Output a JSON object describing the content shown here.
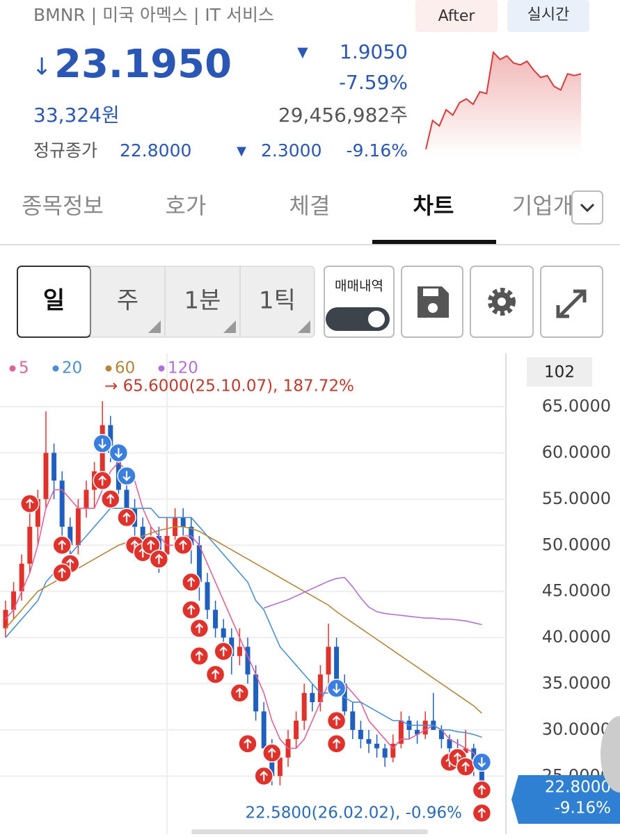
{
  "header": {
    "symbol": "BMNR | 미국 아멕스 | IT 서비스",
    "after": "After",
    "realtime": "실시간"
  },
  "price": {
    "arrow": "↓",
    "value": "23.1950",
    "change_arrow": "▼",
    "change": "1.9050",
    "change_pct": "-7.59%",
    "krw": "33,324원",
    "volume": "29,456,982주"
  },
  "regular": {
    "label": "정규종가",
    "price": "22.8000",
    "arrow": "▼",
    "change": "2.3000",
    "pct": "-9.16%"
  },
  "mini_chart": {
    "color": "#d83a3a",
    "ylim": [
      19.8,
      25.8
    ],
    "values": [
      20.2,
      21.8,
      21.5,
      22.4,
      22.1,
      22.8,
      23,
      22.7,
      23.4,
      23.3,
      25.6,
      25.2,
      25.4,
      25,
      24.9,
      25.1,
      24.6,
      24.2,
      24.3,
      23.7,
      23.5,
      24.4,
      24.3,
      24.4
    ]
  },
  "tabs": [
    "종목정보",
    "호가",
    "체결",
    "차트",
    "기업개"
  ],
  "toolbar": {
    "periods": [
      "일",
      "주",
      "1분",
      "1틱"
    ],
    "trade_toggle": "매매내역"
  },
  "chart_data": {
    "type": "candlestick",
    "up_color": "#e0312b",
    "down_color": "#1f5fbf",
    "ylim": [
      18.7,
      70.8
    ],
    "yticks": [
      {
        "value": 65,
        "label": "65.0000"
      },
      {
        "value": 60,
        "label": "60.0000"
      },
      {
        "value": 55,
        "label": "55.0000"
      },
      {
        "value": 50,
        "label": "50.0000"
      },
      {
        "value": 45,
        "label": "45.0000"
      },
      {
        "value": 40,
        "label": "40.0000"
      },
      {
        "value": 35,
        "label": "35.0000"
      },
      {
        "value": 30,
        "label": "30.0000"
      },
      {
        "value": 25,
        "label": "25.0000"
      }
    ],
    "grid": true,
    "count": "102",
    "high_annotation": "→ 65.6000(25.10.07), 187.72%",
    "low_annotation": "22.5800(26.02.02), -0.96%",
    "last_price": "22.8000",
    "last_pct": "-9.16%",
    "candles": [
      [
        41,
        44,
        40,
        43
      ],
      [
        43,
        46,
        42,
        45
      ],
      [
        45,
        49,
        44,
        48
      ],
      [
        48,
        54,
        47,
        52
      ],
      [
        52,
        56,
        50,
        55
      ],
      [
        55,
        64.5,
        54,
        60
      ],
      [
        60,
        61,
        55,
        57
      ],
      [
        57,
        58,
        50,
        52
      ],
      [
        52,
        53,
        48,
        50
      ],
      [
        50,
        55,
        49,
        54
      ],
      [
        54,
        57,
        53,
        56
      ],
      [
        56,
        59,
        54,
        58
      ],
      [
        58,
        65.6,
        57,
        63
      ],
      [
        63,
        64,
        59,
        60
      ],
      [
        60,
        61,
        55,
        56
      ],
      [
        56,
        57,
        53,
        54
      ],
      [
        54,
        55,
        51,
        52
      ],
      [
        52,
        53,
        49,
        50
      ],
      [
        50,
        52,
        48,
        51
      ],
      [
        51,
        52,
        47,
        49
      ],
      [
        49,
        53,
        48,
        51
      ],
      [
        51,
        54,
        50,
        53
      ],
      [
        53,
        54,
        51,
        52
      ],
      [
        52,
        53,
        48,
        50
      ],
      [
        50,
        51,
        44,
        46
      ],
      [
        46,
        47,
        42,
        43
      ],
      [
        43,
        44,
        40,
        41
      ],
      [
        41,
        42,
        38,
        40
      ],
      [
        40,
        41,
        36,
        38
      ],
      [
        38,
        41,
        37,
        39
      ],
      [
        39,
        40,
        35,
        36
      ],
      [
        36,
        37,
        31,
        32
      ],
      [
        32,
        33,
        27,
        28
      ],
      [
        28,
        29,
        24,
        25
      ],
      [
        25,
        28,
        24,
        27
      ],
      [
        27,
        30,
        26,
        29
      ],
      [
        29,
        32,
        28,
        31
      ],
      [
        31,
        35,
        30,
        34
      ],
      [
        34,
        35,
        32,
        33
      ],
      [
        33,
        37,
        32,
        36
      ],
      [
        36,
        41.5,
        35,
        39
      ],
      [
        39,
        40,
        34,
        35
      ],
      [
        35,
        36,
        31,
        32
      ],
      [
        32,
        33,
        29,
        30
      ],
      [
        30,
        31,
        28,
        29
      ],
      [
        29,
        30,
        27.5,
        28.5
      ],
      [
        28.5,
        29.5,
        27,
        28
      ],
      [
        28,
        28.5,
        26,
        27
      ],
      [
        27,
        29.5,
        26.5,
        28.5
      ],
      [
        28.5,
        32,
        28,
        31
      ],
      [
        31,
        31.5,
        29,
        30
      ],
      [
        30,
        31,
        28.5,
        29.5
      ],
      [
        29.5,
        32,
        29,
        31
      ],
      [
        31,
        34,
        30,
        30
      ],
      [
        30,
        30.5,
        28,
        29
      ],
      [
        29,
        29.5,
        27,
        28
      ],
      [
        28,
        29,
        27,
        27.5
      ],
      [
        27.5,
        30,
        27,
        28
      ],
      [
        28,
        28.5,
        25,
        26
      ],
      [
        26,
        26.5,
        22.58,
        22.8
      ]
    ],
    "series": [
      {
        "name": "5",
        "color": "#e0609a",
        "values": [
          42,
          43,
          45,
          47,
          50,
          54,
          56,
          56,
          55,
          54,
          54,
          54,
          56,
          58,
          59,
          58,
          57,
          54,
          52,
          51,
          50,
          50,
          51,
          51,
          50,
          48,
          46,
          44,
          42,
          40,
          38,
          36,
          34,
          31,
          29,
          28,
          28,
          29,
          31,
          33,
          35,
          35,
          35,
          34,
          33,
          31,
          30,
          29,
          28,
          29,
          29,
          29.5,
          30,
          30.5,
          30,
          29,
          28.5,
          28,
          27.5,
          26
        ]
      },
      {
        "name": "20",
        "color": "#4a8fd6",
        "values": [
          40,
          41,
          42,
          43,
          44,
          46,
          47,
          48,
          49,
          50,
          51,
          52,
          53,
          54,
          54,
          54,
          54,
          54,
          54,
          53,
          53,
          53,
          53,
          53,
          52,
          51,
          50,
          49,
          48,
          47,
          46,
          44,
          43,
          41,
          39,
          38,
          37,
          36,
          35,
          34,
          34,
          34,
          33.5,
          33,
          33,
          32.5,
          32,
          31.5,
          31,
          31,
          30.5,
          30.5,
          30.5,
          30.5,
          30,
          30,
          29.8,
          29.7,
          29.5,
          29.2
        ]
      },
      {
        "name": "60",
        "color": "#b5863a",
        "values": [
          41,
          42,
          43,
          44,
          45,
          45.5,
          46,
          46.5,
          47,
          47.5,
          48,
          48.5,
          49,
          49.5,
          50,
          50.3,
          50.6,
          51,
          51.3,
          51.6,
          51.8,
          52,
          52,
          51.8,
          51.5,
          51,
          50.5,
          50,
          49.5,
          49,
          48.5,
          48,
          47.5,
          47,
          46.5,
          46,
          45.5,
          45,
          44.5,
          44,
          43.5,
          42.8,
          42.2,
          41.6,
          41,
          40.4,
          39.8,
          39.2,
          38.6,
          38,
          37.4,
          36.8,
          36.2,
          35.6,
          35,
          34.4,
          33.8,
          33.2,
          32.6,
          31.8
        ]
      },
      {
        "name": "120",
        "color": "#b26fd6",
        "values": [
          null,
          null,
          null,
          null,
          null,
          null,
          null,
          null,
          null,
          null,
          null,
          null,
          null,
          null,
          null,
          null,
          null,
          null,
          null,
          null,
          null,
          null,
          null,
          null,
          null,
          null,
          null,
          null,
          null,
          null,
          null,
          null,
          43.2,
          43.5,
          43.8,
          44.1,
          44.5,
          44.9,
          45.3,
          45.7,
          46.1,
          46.4,
          46.5,
          45.5,
          44.3,
          43.3,
          42.8,
          42.6,
          42.5,
          42.4,
          42.3,
          42.2,
          42.1,
          42.1,
          42,
          42,
          41.9,
          41.8,
          41.6,
          41.4
        ]
      }
    ],
    "markers": [
      {
        "index": 3,
        "price": 54.5,
        "color": "#e0312b"
      },
      {
        "index": 7,
        "price": 50,
        "color": "#e0312b"
      },
      {
        "index": 8,
        "price": 48,
        "color": "#e0312b"
      },
      {
        "index": 7,
        "price": 47,
        "color": "#e0312b"
      },
      {
        "index": 12,
        "price": 57,
        "color": "#e0312b"
      },
      {
        "index": 13,
        "price": 55,
        "color": "#e0312b"
      },
      {
        "index": 15,
        "price": 53,
        "color": "#e0312b"
      },
      {
        "index": 16,
        "price": 50,
        "color": "#e0312b"
      },
      {
        "index": 17,
        "price": 49.2,
        "color": "#e0312b"
      },
      {
        "index": 18,
        "price": 50,
        "color": "#e0312b"
      },
      {
        "index": 19,
        "price": 48.5,
        "color": "#e0312b"
      },
      {
        "index": 22,
        "price": 50,
        "color": "#e0312b"
      },
      {
        "index": 23,
        "price": 46,
        "color": "#e0312b"
      },
      {
        "index": 23,
        "price": 43,
        "color": "#e0312b"
      },
      {
        "index": 24,
        "price": 41,
        "color": "#e0312b"
      },
      {
        "index": 24,
        "price": 38,
        "color": "#e0312b"
      },
      {
        "index": 26,
        "price": 36,
        "color": "#e0312b"
      },
      {
        "index": 27,
        "price": 38.5,
        "color": "#e0312b"
      },
      {
        "index": 29,
        "price": 34,
        "color": "#e0312b"
      },
      {
        "index": 30,
        "price": 28.5,
        "color": "#e0312b"
      },
      {
        "index": 32,
        "price": 25,
        "color": "#e0312b"
      },
      {
        "index": 33,
        "price": 27.5,
        "color": "#e0312b"
      },
      {
        "index": 41,
        "price": 31,
        "color": "#e0312b"
      },
      {
        "index": 41,
        "price": 28.5,
        "color": "#e0312b"
      },
      {
        "index": 55,
        "price": 26.5,
        "color": "#e0312b"
      },
      {
        "index": 56,
        "price": 27,
        "color": "#e0312b"
      },
      {
        "index": 57,
        "price": 26,
        "color": "#e0312b"
      },
      {
        "index": 59,
        "price": 23.5,
        "color": "#e0312b"
      },
      {
        "index": 59,
        "price": 21,
        "color": "#e0312b"
      },
      {
        "index": 12,
        "price": 61,
        "color": "#3a7ee0"
      },
      {
        "index": 14,
        "price": 60,
        "color": "#3a7ee0"
      },
      {
        "index": 15,
        "price": 57.5,
        "color": "#3a7ee0"
      },
      {
        "index": 41,
        "price": 34.5,
        "color": "#3a7ee0"
      },
      {
        "index": 59,
        "price": 26.5,
        "color": "#3a7ee0"
      }
    ]
  }
}
